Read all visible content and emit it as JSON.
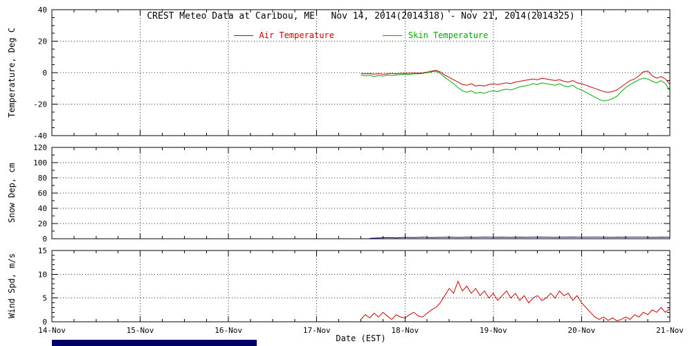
{
  "chart_data": {
    "title": "CREST Meteo Data at Caribou, ME   Nov 14, 2014(2014318) - Nov 21, 2014(2014325)",
    "legend": [
      {
        "label": "Air Temperature",
        "color": "#cc0000"
      },
      {
        "label": "Skin Temperature",
        "color": "#00aa00"
      }
    ],
    "x_axis": {
      "label": "Date (EST)",
      "range": [
        0,
        7
      ],
      "tick_values": [
        0,
        1,
        2,
        3,
        4,
        5,
        6,
        7
      ],
      "tick_labels": [
        "14-Nov",
        "15-Nov",
        "16-Nov",
        "17-Nov",
        "18-Nov",
        "19-Nov",
        "20-Nov",
        "21-Nov"
      ],
      "minor_step": 0.25,
      "grid": "dotted"
    },
    "panels": [
      {
        "type": "line",
        "ylabel": "Temperature, Deg C",
        "ylim": [
          -40,
          40
        ],
        "yticks": [
          -40,
          -20,
          0,
          20,
          40
        ],
        "yminor_step": 5,
        "series": [
          {
            "name": "Air Temperature",
            "color": "#cc0000",
            "x_start": 3.5,
            "x_step": 0.05,
            "y": [
              -0.5,
              -0.8,
              -0.5,
              -1.0,
              -0.7,
              -1.0,
              -0.8,
              -0.5,
              -0.7,
              -0.5,
              -0.3,
              -0.4,
              -0.2,
              -0.3,
              -0.1,
              0.3,
              1.0,
              1.5,
              0.5,
              -1.5,
              -3.0,
              -4.5,
              -6.0,
              -7.5,
              -8.0,
              -7.0,
              -8.5,
              -8.0,
              -8.5,
              -7.5,
              -7.0,
              -7.5,
              -7.0,
              -6.5,
              -7.0,
              -6.0,
              -5.5,
              -5.0,
              -4.5,
              -4.0,
              -4.5,
              -3.5,
              -4.0,
              -4.5,
              -5.0,
              -4.5,
              -5.5,
              -6.0,
              -5.0,
              -6.5,
              -7.0,
              -8.0,
              -9.0,
              -10.0,
              -11.0,
              -12.0,
              -12.5,
              -12.0,
              -11.0,
              -9.0,
              -7.0,
              -5.0,
              -4.0,
              -2.0,
              0.5,
              1.0,
              -2.0,
              -3.5,
              -2.5,
              -4.0,
              -7.5
            ]
          },
          {
            "name": "Skin Temperature",
            "color": "#00aa00",
            "x_start": 3.5,
            "x_step": 0.05,
            "y": [
              -1.5,
              -2.0,
              -1.5,
              -2.5,
              -1.8,
              -2.2,
              -1.5,
              -1.8,
              -1.5,
              -1.2,
              -1.0,
              -1.2,
              -0.8,
              -0.8,
              -0.5,
              0.0,
              0.5,
              1.0,
              -0.5,
              -3.0,
              -5.0,
              -7.0,
              -9.5,
              -11.5,
              -12.5,
              -11.5,
              -13.0,
              -12.5,
              -13.0,
              -12.0,
              -11.5,
              -12.0,
              -11.0,
              -10.5,
              -11.0,
              -10.0,
              -9.0,
              -8.5,
              -8.0,
              -7.0,
              -7.5,
              -6.5,
              -7.0,
              -7.5,
              -8.0,
              -7.0,
              -8.5,
              -9.0,
              -8.0,
              -10.0,
              -11.0,
              -12.5,
              -14.0,
              -15.5,
              -17.0,
              -18.0,
              -17.5,
              -16.5,
              -15.0,
              -12.0,
              -9.5,
              -7.5,
              -6.0,
              -4.5,
              -3.5,
              -4.0,
              -5.5,
              -6.5,
              -5.0,
              -7.0,
              -11.5
            ]
          }
        ]
      },
      {
        "type": "line",
        "ylabel": "Snow Dep, cm",
        "ylim": [
          0,
          120
        ],
        "yticks": [
          0,
          20,
          40,
          60,
          80,
          100,
          120
        ],
        "yminor_step": 10,
        "series": [
          {
            "name": "Snow Depth",
            "color": "#000080",
            "x_start": 3.6,
            "x_step": 0.1,
            "y": [
              0.5,
              1.0,
              1.5,
              1.2,
              1.8,
              1.5,
              2.0,
              1.6,
              1.8,
              2.0,
              1.7,
              2.0,
              1.8,
              2.2,
              1.9,
              2.0,
              1.8,
              2.1,
              1.9,
              2.2,
              2.0,
              1.8,
              2.0,
              2.2,
              1.9,
              2.1,
              2.0,
              1.8,
              2.0,
              1.9,
              2.1,
              2.0,
              1.8,
              2.0,
              1.9
            ]
          }
        ]
      },
      {
        "type": "line",
        "ylabel": "Wind Spd, m/s",
        "ylim": [
          0,
          15
        ],
        "yticks": [
          0,
          5,
          10,
          15
        ],
        "yminor_step": 1,
        "series": [
          {
            "name": "Wind Speed",
            "color": "#cc0000",
            "x_start": 3.5,
            "x_step": 0.05,
            "y": [
              0.5,
              1.5,
              0.8,
              1.8,
              1.0,
              2.0,
              1.2,
              0.5,
              1.5,
              1.0,
              0.8,
              1.5,
              2.0,
              1.2,
              1.0,
              1.8,
              2.5,
              3.0,
              4.0,
              5.5,
              7.0,
              6.0,
              8.5,
              6.5,
              7.5,
              6.0,
              7.0,
              5.5,
              6.5,
              5.0,
              6.0,
              4.5,
              5.5,
              6.5,
              5.0,
              6.0,
              4.5,
              5.5,
              4.0,
              5.0,
              5.5,
              4.5,
              5.0,
              6.0,
              5.0,
              6.5,
              5.5,
              6.0,
              4.5,
              5.5,
              4.0,
              3.0,
              2.0,
              1.0,
              0.5,
              1.0,
              0.3,
              0.8,
              0.2,
              0.5,
              1.0,
              0.5,
              1.5,
              1.0,
              2.0,
              1.5,
              2.5,
              2.0,
              3.0,
              2.0,
              2.8
            ]
          }
        ]
      }
    ]
  },
  "artifact_bar": {
    "color": "#000066"
  }
}
